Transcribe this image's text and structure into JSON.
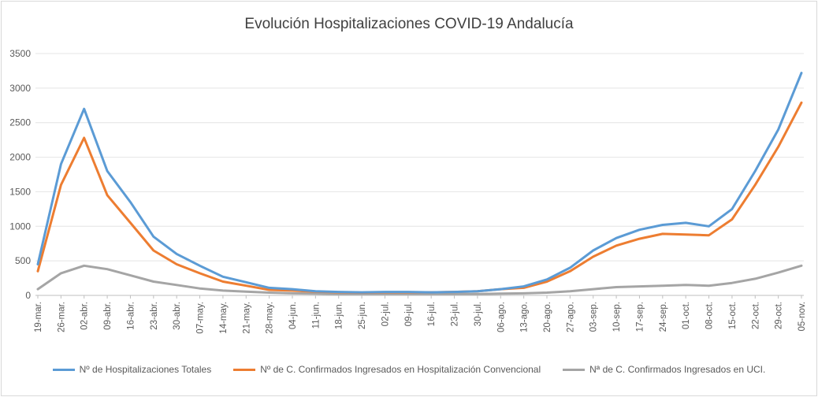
{
  "chart_data": {
    "type": "line",
    "title": "Evolución Hospitalizaciones COVID-19 Andalucía",
    "xlabel": "",
    "ylabel": "",
    "ylim": [
      0,
      3500
    ],
    "yticks": [
      0,
      500,
      1000,
      1500,
      2000,
      2500,
      3000,
      3500
    ],
    "xtick_labels": [
      "19-mar.",
      "26-mar.",
      "02-abr.",
      "09-abr.",
      "16-abr.",
      "23-abr.",
      "30-abr.",
      "07-may.",
      "14-may.",
      "21-may.",
      "28-may.",
      "04-jun.",
      "11-jun.",
      "18-jun.",
      "25-jun.",
      "02-jul.",
      "09-jul.",
      "16-jul.",
      "23-jul.",
      "30-jul.",
      "06-ago.",
      "13-ago.",
      "20-ago.",
      "27-ago.",
      "03-sep.",
      "10-sep.",
      "17-sep.",
      "24-sep.",
      "01-oct.",
      "08-oct.",
      "15-oct.",
      "22-oct.",
      "29-oct.",
      "05-nov."
    ],
    "grid": true,
    "legend_position": "bottom",
    "series": [
      {
        "name": "Nº de Hospitalizaciones Totales",
        "color": "#5b9bd5",
        "values": [
          450,
          1900,
          2700,
          1800,
          1350,
          850,
          600,
          430,
          270,
          190,
          110,
          90,
          60,
          50,
          45,
          50,
          50,
          45,
          50,
          60,
          90,
          130,
          230,
          400,
          650,
          830,
          950,
          1020,
          1050,
          1000,
          1250,
          1800,
          2400,
          3220
        ]
      },
      {
        "name": "Nº de C. Confirmados Ingresados en Hospitalización Convencional",
        "color": "#ed7d31",
        "values": [
          350,
          1600,
          2280,
          1450,
          1050,
          650,
          450,
          320,
          200,
          140,
          80,
          70,
          55,
          45,
          40,
          45,
          45,
          45,
          50,
          60,
          90,
          110,
          200,
          350,
          560,
          720,
          820,
          890,
          880,
          870,
          1100,
          1600,
          2150,
          2790
        ]
      },
      {
        "name": "Nª de C. Confirmados Ingresados en UCI.",
        "color": "#a5a5a5",
        "values": [
          90,
          320,
          430,
          380,
          290,
          200,
          150,
          100,
          70,
          55,
          40,
          30,
          25,
          20,
          20,
          20,
          20,
          20,
          20,
          20,
          25,
          30,
          40,
          60,
          90,
          120,
          130,
          140,
          150,
          140,
          180,
          240,
          330,
          430
        ]
      }
    ]
  }
}
